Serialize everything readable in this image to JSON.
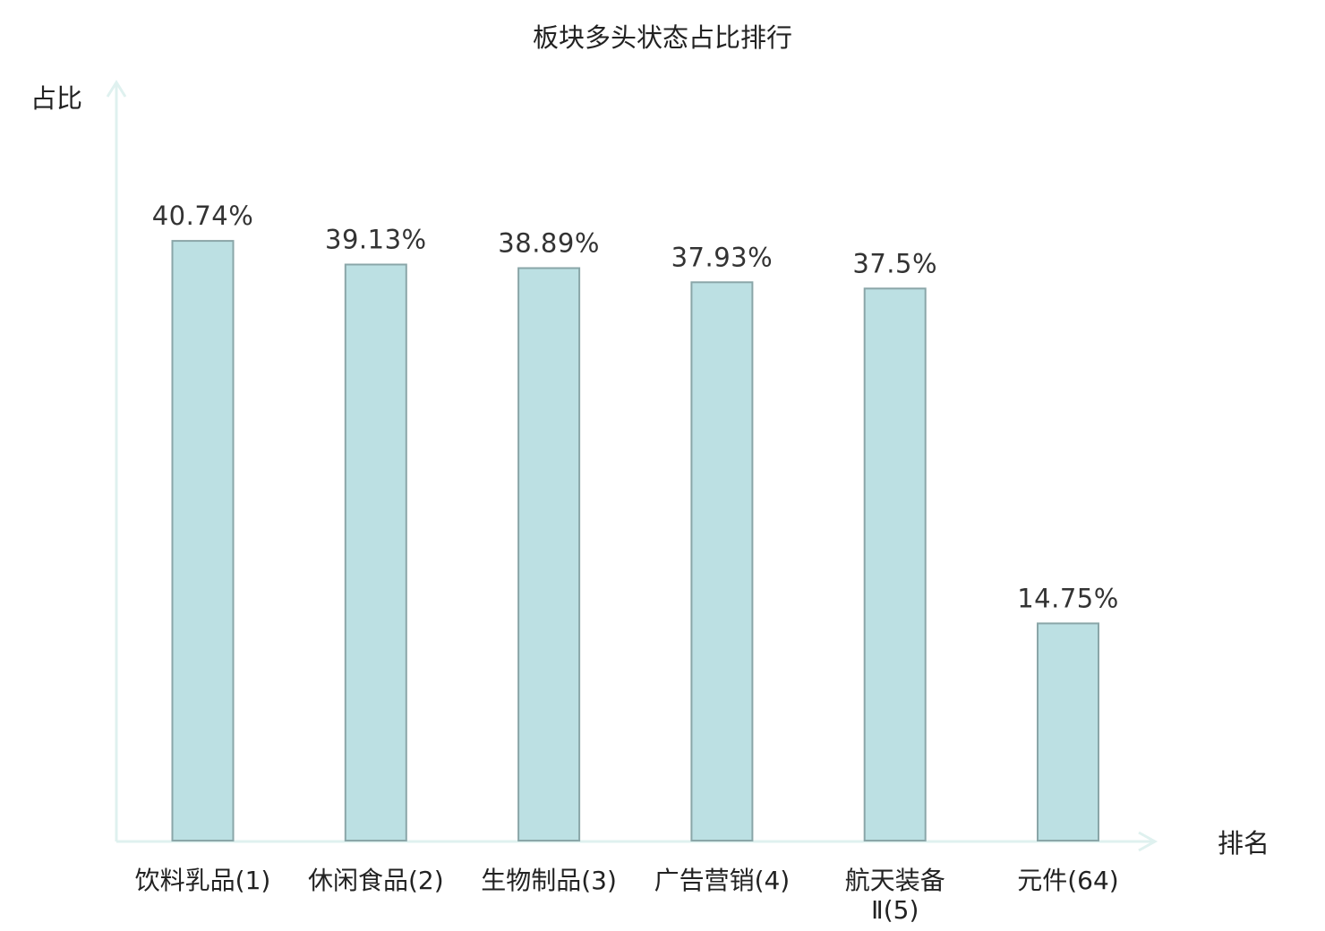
{
  "chart_data": {
    "type": "bar",
    "title": "板块多头状态占比排行",
    "ylabel": "占比",
    "xlabel": "排名",
    "ylim": [
      0,
      45
    ],
    "grid": false,
    "categories": [
      "饮料乳品(1)",
      "休闲食品(2)",
      "生物制品(3)",
      "广告营销(4)",
      "航天装备Ⅱ(5)",
      "元件(64)"
    ],
    "category_lines": [
      [
        "饮料乳品(1)"
      ],
      [
        "休闲食品(2)"
      ],
      [
        "生物制品(3)"
      ],
      [
        "广告营销(4)"
      ],
      [
        "航天装备",
        "Ⅱ(5)"
      ],
      [
        "元件(64)"
      ]
    ],
    "values": [
      40.74,
      39.13,
      38.89,
      37.93,
      37.5,
      14.75
    ],
    "value_labels": [
      "40.74%",
      "39.13%",
      "38.89%",
      "37.93%",
      "37.5%",
      "14.75%"
    ],
    "highlight_index": 5,
    "colors": {
      "bar_fill": "#bce0e3",
      "bar_stroke": "#8aa6a8",
      "axis": "#dff1ef",
      "text": "#222222",
      "value_text": "#333333",
      "highlight_text": "#e0191b"
    }
  }
}
